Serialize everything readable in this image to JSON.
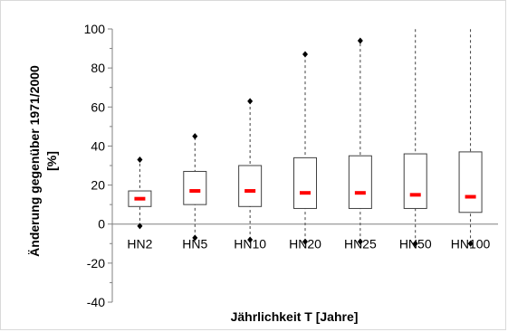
{
  "chart_data": {
    "type": "box",
    "title": "",
    "xlabel": "Jährlichkeit T [Jahre]",
    "ylabel_line1": "Änderung gegenüber 1971/2000",
    "ylabel_line2": "[%]",
    "ylim": [
      -40,
      100
    ],
    "yticks": [
      -40,
      -20,
      0,
      20,
      40,
      60,
      80,
      100
    ],
    "grid": false,
    "categories": [
      "HN2",
      "HN5",
      "HN10",
      "HN20",
      "HN25",
      "HN50",
      "HN100"
    ],
    "series": [
      {
        "q1": 9,
        "median": 13,
        "q3": 17,
        "min": -1,
        "max": 33
      },
      {
        "q1": 10,
        "median": 17,
        "q3": 27,
        "min": -7,
        "max": 45
      },
      {
        "q1": 9,
        "median": 17,
        "q3": 30,
        "min": -8,
        "max": 63
      },
      {
        "q1": 8,
        "median": 16,
        "q3": 34,
        "min": -9,
        "max": 87
      },
      {
        "q1": 8,
        "median": 16,
        "q3": 35,
        "min": -9,
        "max": 94
      },
      {
        "q1": 8,
        "median": 15,
        "q3": 36,
        "min": -10,
        "max": 100
      },
      {
        "q1": 6,
        "median": 14,
        "q3": 37,
        "min": -10,
        "max": 100
      }
    ],
    "colors": {
      "box": "#404040",
      "median": "#ff0000",
      "whisker": "#404040",
      "marker": "#000000"
    }
  }
}
